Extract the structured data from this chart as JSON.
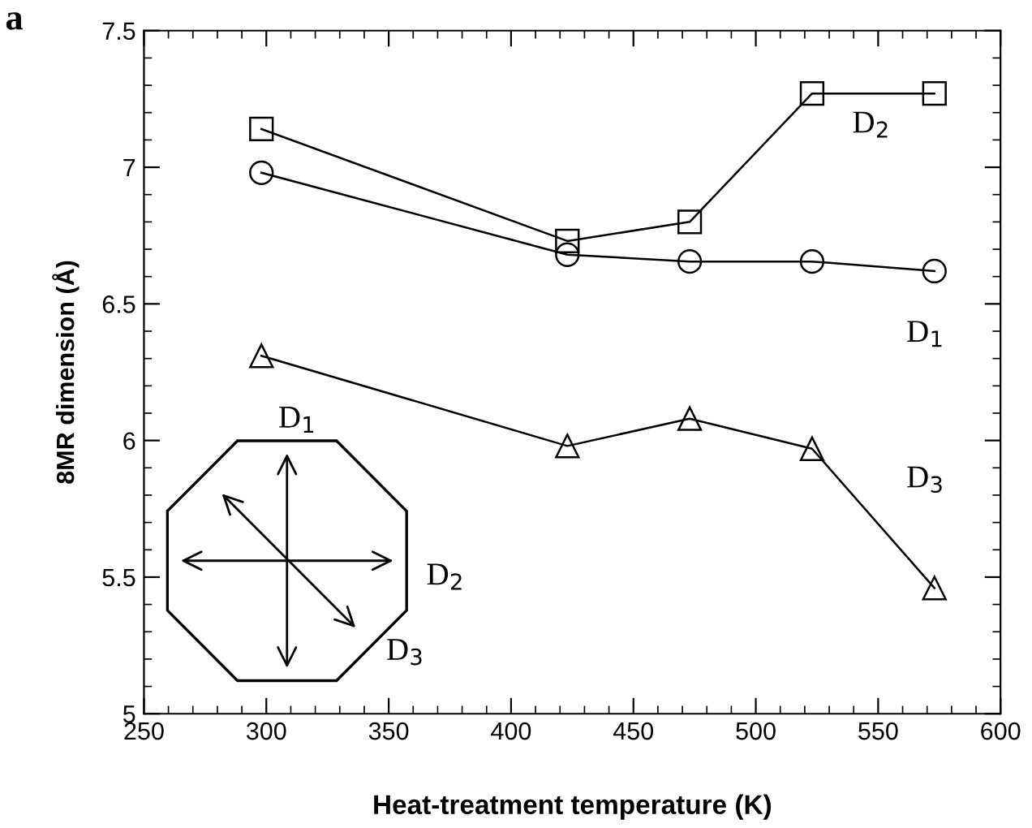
{
  "chart_data": {
    "type": "line",
    "xlabel": "Heat-treatment temperature (K)",
    "ylabel": "8MR dimension (Å)",
    "xlim": [
      250,
      600
    ],
    "xticks": [
      250,
      300,
      350,
      400,
      450,
      500,
      550,
      600
    ],
    "ylim": [
      5,
      7.5
    ],
    "yticks": [
      5,
      5.5,
      6,
      6.5,
      7,
      7.5
    ],
    "grid": false,
    "legend": "right",
    "line_style": "solid",
    "series": [
      {
        "name": "D$_{2}$",
        "color": "#000000",
        "marker": "square",
        "x": [
          298,
          423,
          473,
          523,
          573
        ],
        "values": [
          7.14,
          6.73,
          6.8,
          7.27,
          7.27
        ]
      },
      {
        "name": "D$_{1}$",
        "color": "#000000",
        "marker": "circle",
        "x": [
          298,
          423,
          473,
          523,
          573
        ],
        "values": [
          6.98,
          6.68,
          6.655,
          6.655,
          6.62
        ]
      },
      {
        "name": "D$_{3}$",
        "color": "#000000",
        "marker": "triangle",
        "x": [
          298,
          423,
          473,
          523,
          573
        ],
        "values": [
          6.31,
          5.98,
          6.08,
          5.97,
          5.46
        ]
      }
    ],
    "annotations": [
      "a",
      "D$_{1}$",
      "D$_{2}$",
      "D$_{3}$"
    ]
  }
}
